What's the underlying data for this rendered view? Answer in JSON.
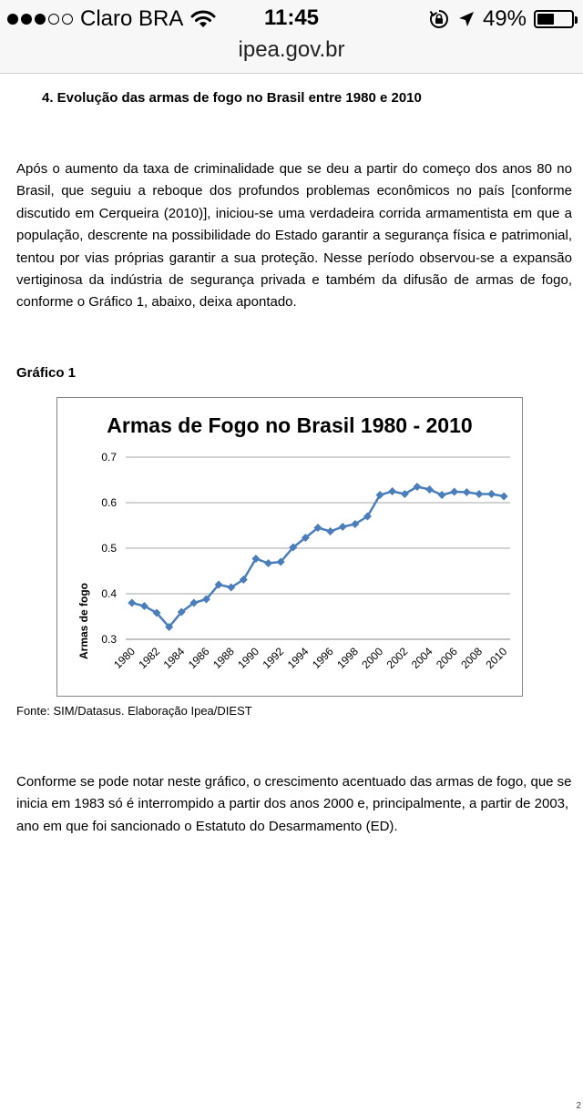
{
  "status_bar": {
    "carrier": "Claro BRA",
    "time": "11:45",
    "battery_percent": "49%",
    "battery_level": 0.49,
    "icons": [
      "signal-dots-icon",
      "wifi-icon",
      "rotation-lock-icon",
      "location-arrow-icon",
      "battery-icon"
    ]
  },
  "browser": {
    "url": "ipea.gov.br"
  },
  "document": {
    "section_heading": "4.   Evolução das armas de fogo no Brasil entre 1980 e 2010",
    "paragraph1": "Após o aumento da taxa de criminalidade que se deu a partir do começo dos anos 80 no Brasil, que seguiu a reboque dos profundos problemas econômicos no país [conforme discutido em Cerqueira (2010)], iniciou-se uma verdadeira corrida armamentista em que a população, descrente na possibilidade do Estado garantir a segurança física e patrimonial, tentou por vias próprias garantir a sua proteção. Nesse período observou-se a expansão vertiginosa da indústria de segurança privada e também da difusão de armas de fogo, conforme o Gráfico 1, abaixo, deixa apontado.",
    "figure_label": "Gráfico 1",
    "source_note": "Fonte: SIM/Datasus. Elaboração Ipea/DIEST",
    "paragraph2": "Conforme se pode notar neste gráfico, o crescimento acentuado das armas de fogo, que se inicia em 1983 só é interrompido a partir dos anos 2000 e, principalmente, a partir de 2003, ano em que foi sancionado o Estatuto do Desarmamento (ED).",
    "page_number": "2"
  },
  "chart_data": {
    "type": "line",
    "title": "Armas de Fogo no Brasil 1980 - 2010",
    "xlabel": "",
    "ylabel": "Armas de fogo",
    "ylim": [
      0.3,
      0.7
    ],
    "yticks": [
      "0.3",
      "0.4",
      "0.5",
      "0.6",
      "0.7"
    ],
    "xtick_labels": [
      "1980",
      "1982",
      "1984",
      "1986",
      "1988",
      "1990",
      "1992",
      "1994",
      "1996",
      "1998",
      "2000",
      "2002",
      "2004",
      "2006",
      "2008",
      "2010"
    ],
    "grid": "horizontal",
    "legend": "none",
    "color": "#4a7ebb",
    "x": [
      1980,
      1981,
      1982,
      1983,
      1984,
      1985,
      1986,
      1987,
      1988,
      1989,
      1990,
      1991,
      1992,
      1993,
      1994,
      1995,
      1996,
      1997,
      1998,
      1999,
      2000,
      2001,
      2002,
      2003,
      2004,
      2005,
      2006,
      2007,
      2008,
      2009,
      2010
    ],
    "values": [
      0.38,
      0.373,
      0.358,
      0.327,
      0.36,
      0.38,
      0.388,
      0.42,
      0.414,
      0.431,
      0.477,
      0.467,
      0.47,
      0.502,
      0.523,
      0.545,
      0.537,
      0.547,
      0.553,
      0.57,
      0.617,
      0.625,
      0.619,
      0.635,
      0.629,
      0.617,
      0.624,
      0.623,
      0.619,
      0.619,
      0.614
    ]
  }
}
